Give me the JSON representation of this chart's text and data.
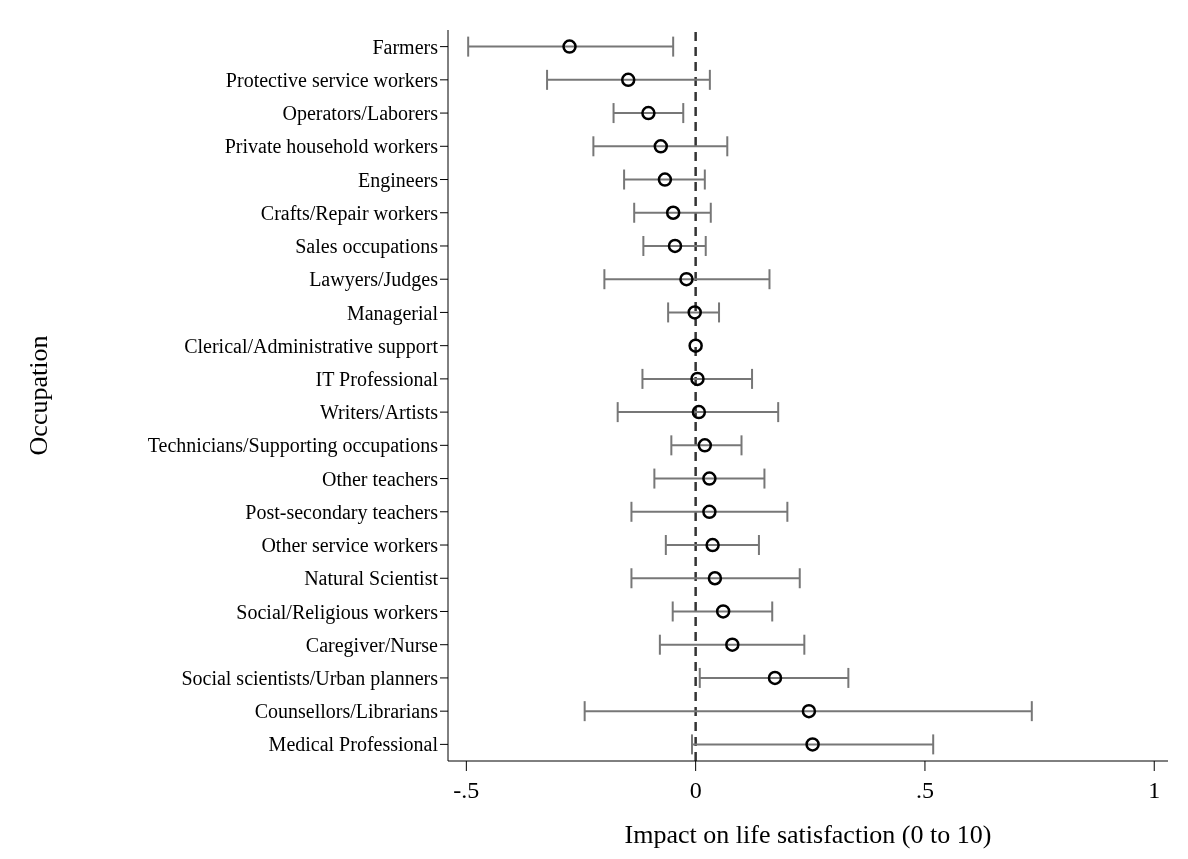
{
  "chart_data": {
    "type": "scatter",
    "orientation": "horizontal",
    "xlabel": "Impact on life satisfaction (0 to 10)",
    "ylabel": "Occupation",
    "categories": [
      "Farmers",
      "Protective service workers",
      "Operators/Laborers",
      "Private household workers",
      "Engineers",
      "Crafts/Repair workers",
      "Sales occupations",
      "Lawyers/Judges",
      "Managerial",
      "Clerical/Administrative support",
      "IT Professional",
      "Writers/Artists",
      "Technicians/Supporting occupations",
      "Other teachers",
      "Post-secondary teachers",
      "Other service workers",
      "Natural Scientist",
      "Social/Religious workers",
      "Caregiver/Nurse",
      "Social scientists/Urban planners",
      "Counsellors/Librarians",
      "Medical Professional"
    ],
    "values": [
      -0.275,
      -0.147,
      -0.103,
      -0.076,
      -0.067,
      -0.049,
      -0.045,
      -0.02,
      -0.002,
      0,
      0.004,
      0.007,
      0.02,
      0.03,
      0.03,
      0.037,
      0.042,
      0.06,
      0.08,
      0.173,
      0.247,
      0.255
    ],
    "errors": [
      [
        -0.496,
        -0.049
      ],
      [
        -0.324,
        0.031
      ],
      [
        -0.179,
        -0.027
      ],
      [
        -0.223,
        0.069
      ],
      [
        -0.156,
        0.02
      ],
      [
        -0.134,
        0.033
      ],
      [
        -0.114,
        0.022
      ],
      [
        -0.199,
        0.161
      ],
      [
        -0.06,
        0.051
      ],
      null,
      [
        -0.116,
        0.123
      ],
      [
        -0.17,
        0.18
      ],
      [
        -0.053,
        0.1
      ],
      [
        -0.09,
        0.15
      ],
      [
        -0.14,
        0.2
      ],
      [
        -0.065,
        0.138
      ],
      [
        -0.14,
        0.227
      ],
      [
        -0.05,
        0.167
      ],
      [
        -0.078,
        0.237
      ],
      [
        0.009,
        0.333
      ],
      [
        -0.242,
        0.733
      ],
      [
        -0.008,
        0.518
      ]
    ],
    "color": "#000000",
    "marker": "circle",
    "xlim": [
      -0.54,
      1.03
    ],
    "xticks": [
      {
        "value": -0.5,
        "label": "-.5"
      },
      0,
      {
        "value": 0.5,
        "label": ".5"
      },
      1
    ],
    "ref_lines": [
      {
        "axis": "x",
        "value": 0,
        "line_style": "dashed",
        "color": "#333333"
      }
    ]
  }
}
